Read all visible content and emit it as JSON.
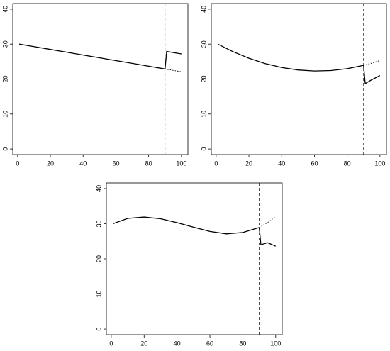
{
  "chart_data": [
    {
      "type": "line",
      "xlim": [
        -2.96,
        103.96
      ],
      "ylim": [
        -1.6,
        41.6
      ],
      "xticks": [
        0,
        20,
        40,
        60,
        80,
        100
      ],
      "yticks": [
        0,
        10,
        20,
        30,
        40
      ],
      "vline": 90,
      "vline_dash": "dashed",
      "series": [
        {
          "x": [
            1,
            10,
            20,
            30,
            40,
            50,
            60,
            70,
            80,
            90
          ],
          "values": [
            30,
            29.28,
            28.48,
            27.68,
            26.88,
            26.08,
            25.28,
            24.48,
            23.68,
            22.88
          ],
          "color": "#000000",
          "dash": "solid"
        },
        {
          "x": [
            90,
            95,
            100
          ],
          "values": [
            22.88,
            22.48,
            22.08
          ],
          "color": "#000000",
          "dash": "dotted"
        },
        {
          "x": [
            90,
            91,
            100
          ],
          "values": [
            22.88,
            27.9,
            27.2
          ],
          "color": "#000000",
          "dash": "solid"
        }
      ]
    },
    {
      "type": "line",
      "xlim": [
        -2.96,
        103.96
      ],
      "ylim": [
        -1.6,
        41.6
      ],
      "xticks": [
        0,
        20,
        40,
        60,
        80,
        100
      ],
      "yticks": [
        0,
        10,
        20,
        30,
        40
      ],
      "vline": 90,
      "vline_dash": "dashed",
      "series": [
        {
          "x": [
            1,
            10,
            20,
            30,
            40,
            50,
            60,
            70,
            80,
            90
          ],
          "values": [
            30,
            27.9,
            25.95,
            24.42,
            23.3,
            22.6,
            22.31,
            22.43,
            22.97,
            23.92
          ],
          "color": "#000000",
          "dash": "solid"
        },
        {
          "x": [
            90,
            95,
            100
          ],
          "values": [
            23.92,
            24.55,
            25.3
          ],
          "color": "#000000",
          "dash": "dotted"
        },
        {
          "x": [
            90,
            91,
            95,
            100
          ],
          "values": [
            23.92,
            18.7,
            19.8,
            21.0
          ],
          "color": "#000000",
          "dash": "solid"
        }
      ]
    },
    {
      "type": "line",
      "xlim": [
        -2.96,
        103.96
      ],
      "ylim": [
        -1.6,
        41.6
      ],
      "xticks": [
        0,
        20,
        40,
        60,
        80,
        100
      ],
      "yticks": [
        0,
        10,
        20,
        30,
        40
      ],
      "vline": 90,
      "vline_dash": "dashed",
      "series": [
        {
          "x": [
            1,
            10,
            20,
            30,
            40,
            50,
            60,
            70,
            80,
            90
          ],
          "values": [
            30,
            31.5,
            31.9,
            31.4,
            30.3,
            29,
            27.8,
            27.1,
            27.5,
            28.9
          ],
          "color": "#000000",
          "dash": "solid"
        },
        {
          "x": [
            90,
            95,
            100
          ],
          "values": [
            28.9,
            30.3,
            32
          ],
          "color": "#000000",
          "dash": "dotted"
        },
        {
          "x": [
            90,
            91,
            95,
            100
          ],
          "values": [
            28.9,
            24,
            24.6,
            23.6
          ],
          "color": "#000000",
          "dash": "solid"
        }
      ]
    }
  ]
}
